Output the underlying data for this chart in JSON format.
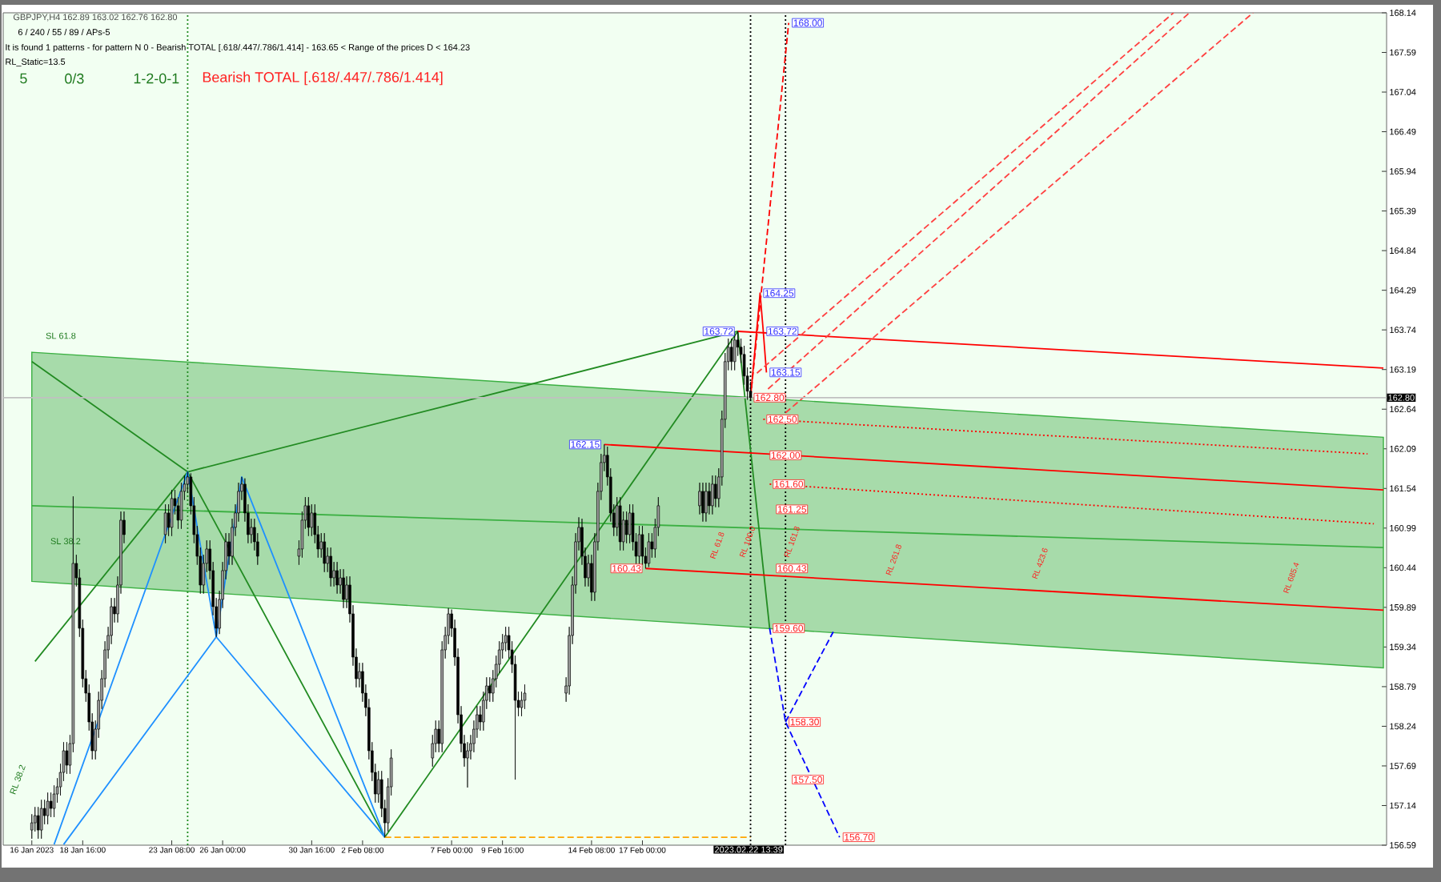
{
  "chart_data": {
    "type": "candlestick",
    "title": "GBPJPY,H4  162.89 163.02 162.76 162.80",
    "xlim": [
      "2023-01-14T12:00",
      "2023-03-28T00:00"
    ],
    "ylim": [
      156.59,
      168.14
    ],
    "xticks": [
      {
        "value": "2023-01-16T00:00",
        "label": "16 Jan 2023"
      },
      {
        "value": "2023-01-18T16:00",
        "label": "18 Jan 16:00"
      },
      {
        "value": "2023-01-23T08:00",
        "label": "23 Jan 08:00"
      },
      {
        "value": "2023-01-26T00:00",
        "label": "26 Jan 00:00"
      },
      {
        "value": "2023-01-30T16:00",
        "label": "30 Jan 16:00"
      },
      {
        "value": "2023-02-02T08:00",
        "label": "2 Feb 08:00"
      },
      {
        "value": "2023-02-07T00:00",
        "label": "7 Feb 00:00"
      },
      {
        "value": "2023-02-09T16:00",
        "label": "9 Feb 16:00"
      },
      {
        "value": "2023-02-14T08:00",
        "label": "14 Feb 08:00"
      },
      {
        "value": "2023-02-17T00:00",
        "label": "17 Feb 00:00"
      }
    ],
    "yticks": [
      156.59,
      157.14,
      157.69,
      158.24,
      158.79,
      159.34,
      159.89,
      160.44,
      160.99,
      161.54,
      162.09,
      162.64,
      163.19,
      163.74,
      164.29,
      164.84,
      165.39,
      165.94,
      166.49,
      167.04,
      167.59,
      168.14
    ],
    "x": [
      "2023-01-16T00:00",
      "2023-01-16T04:00",
      "2023-01-16T08:00",
      "2023-01-16T12:00",
      "2023-01-16T16:00",
      "2023-01-16T20:00",
      "2023-01-17T00:00",
      "2023-01-17T04:00",
      "2023-01-17T08:00",
      "2023-01-17T12:00",
      "2023-01-17T16:00",
      "2023-01-17T20:00",
      "2023-01-18T00:00",
      "2023-01-18T04:00",
      "2023-01-18T08:00",
      "2023-01-18T12:00",
      "2023-01-18T16:00",
      "2023-01-18T20:00",
      "2023-01-19T00:00",
      "2023-01-19T04:00",
      "2023-01-19T08:00",
      "2023-01-19T12:00",
      "2023-01-19T16:00",
      "2023-01-19T20:00",
      "2023-01-20T00:00",
      "2023-01-20T04:00",
      "2023-01-20T08:00",
      "2023-01-20T12:00",
      "2023-01-20T16:00",
      "2023-01-20T20:00",
      "2023-01-23T00:00",
      "2023-01-23T04:00",
      "2023-01-23T08:00",
      "2023-01-23T12:00",
      "2023-01-23T16:00",
      "2023-01-23T20:00",
      "2023-01-24T00:00",
      "2023-01-24T04:00",
      "2023-01-24T08:00",
      "2023-01-24T12:00",
      "2023-01-24T16:00",
      "2023-01-24T20:00",
      "2023-01-25T00:00",
      "2023-01-25T04:00",
      "2023-01-25T08:00",
      "2023-01-25T12:00",
      "2023-01-25T16:00",
      "2023-01-25T20:00",
      "2023-01-26T00:00",
      "2023-01-26T04:00",
      "2023-01-26T08:00",
      "2023-01-26T12:00",
      "2023-01-26T16:00",
      "2023-01-26T20:00",
      "2023-01-27T00:00",
      "2023-01-27T04:00",
      "2023-01-27T08:00",
      "2023-01-27T12:00",
      "2023-01-27T16:00",
      "2023-01-27T20:00",
      "2023-01-30T00:00",
      "2023-01-30T04:00",
      "2023-01-30T08:00",
      "2023-01-30T12:00",
      "2023-01-30T16:00",
      "2023-01-30T20:00",
      "2023-01-31T00:00",
      "2023-01-31T04:00",
      "2023-01-31T08:00",
      "2023-01-31T12:00",
      "2023-01-31T16:00",
      "2023-01-31T20:00",
      "2023-02-01T00:00",
      "2023-02-01T04:00",
      "2023-02-01T08:00",
      "2023-02-01T12:00",
      "2023-02-01T16:00",
      "2023-02-01T20:00",
      "2023-02-02T00:00",
      "2023-02-02T04:00",
      "2023-02-02T08:00",
      "2023-02-02T12:00",
      "2023-02-02T16:00",
      "2023-02-02T20:00",
      "2023-02-03T00:00",
      "2023-02-03T04:00",
      "2023-02-03T08:00",
      "2023-02-03T12:00",
      "2023-02-03T16:00",
      "2023-02-03T20:00",
      "2023-02-06T00:00",
      "2023-02-06T04:00",
      "2023-02-06T08:00",
      "2023-02-06T12:00",
      "2023-02-06T16:00",
      "2023-02-06T20:00",
      "2023-02-07T00:00",
      "2023-02-07T04:00",
      "2023-02-07T08:00",
      "2023-02-07T12:00",
      "2023-02-07T16:00",
      "2023-02-07T20:00",
      "2023-02-08T00:00",
      "2023-02-08T04:00",
      "2023-02-08T08:00",
      "2023-02-08T12:00",
      "2023-02-08T16:00",
      "2023-02-08T20:00",
      "2023-02-09T00:00",
      "2023-02-09T04:00",
      "2023-02-09T08:00",
      "2023-02-09T12:00",
      "2023-02-09T16:00",
      "2023-02-09T20:00",
      "2023-02-10T00:00",
      "2023-02-10T04:00",
      "2023-02-10T08:00",
      "2023-02-10T12:00",
      "2023-02-10T16:00",
      "2023-02-10T20:00",
      "2023-02-13T00:00",
      "2023-02-13T04:00",
      "2023-02-13T08:00",
      "2023-02-13T12:00",
      "2023-02-13T16:00",
      "2023-02-13T20:00",
      "2023-02-14T00:00",
      "2023-02-14T04:00",
      "2023-02-14T08:00",
      "2023-02-14T12:00",
      "2023-02-14T16:00",
      "2023-02-14T20:00",
      "2023-02-15T00:00",
      "2023-02-15T04:00",
      "2023-02-15T08:00",
      "2023-02-15T12:00",
      "2023-02-15T16:00",
      "2023-02-15T20:00",
      "2023-02-16T00:00",
      "2023-02-16T04:00",
      "2023-02-16T08:00",
      "2023-02-16T12:00",
      "2023-02-16T16:00",
      "2023-02-16T20:00",
      "2023-02-17T00:00",
      "2023-02-17T04:00",
      "2023-02-17T08:00",
      "2023-02-17T12:00",
      "2023-02-17T16:00",
      "2023-02-17T20:00",
      "2023-02-20T00:00",
      "2023-02-20T04:00",
      "2023-02-20T08:00",
      "2023-02-20T12:00",
      "2023-02-20T16:00",
      "2023-02-20T20:00",
      "2023-02-21T00:00",
      "2023-02-21T04:00",
      "2023-02-21T08:00",
      "2023-02-21T12:00",
      "2023-02-21T16:00",
      "2023-02-21T20:00",
      "2023-02-22T00:00",
      "2023-02-22T04:00",
      "2023-02-22T08:00",
      "2023-02-22T12:00",
      "2023-02-22T16:00"
    ],
    "ohlc": [
      [
        156.8,
        157.02,
        156.68,
        156.9
      ],
      [
        156.9,
        157.12,
        156.78,
        157.0
      ],
      [
        157.0,
        157.12,
        156.68,
        156.8
      ],
      [
        156.8,
        157.22,
        156.68,
        157.1
      ],
      [
        157.1,
        157.22,
        156.88,
        157.0
      ],
      [
        157.0,
        157.32,
        156.88,
        157.2
      ],
      [
        157.2,
        157.32,
        156.98,
        157.1
      ],
      [
        157.1,
        157.42,
        156.98,
        157.3
      ],
      [
        157.3,
        157.52,
        157.18,
        157.4
      ],
      [
        157.4,
        157.72,
        157.28,
        157.6
      ],
      [
        157.6,
        158.02,
        157.48,
        157.9
      ],
      [
        157.9,
        158.02,
        157.58,
        157.7
      ],
      [
        157.7,
        158.12,
        157.58,
        158.0
      ],
      [
        158.0,
        161.43,
        157.88,
        160.5
      ],
      [
        160.5,
        160.62,
        160.18,
        160.3
      ],
      [
        160.3,
        160.42,
        159.48,
        159.6
      ],
      [
        159.6,
        159.72,
        158.78,
        158.9
      ],
      [
        158.9,
        159.02,
        158.58,
        158.7
      ],
      [
        158.7,
        158.82,
        158.18,
        158.3
      ],
      [
        158.3,
        158.42,
        157.78,
        157.9
      ],
      [
        157.9,
        158.32,
        157.78,
        158.2
      ],
      [
        158.2,
        158.72,
        158.08,
        158.6
      ],
      [
        158.6,
        159.02,
        158.48,
        158.9
      ],
      [
        158.9,
        159.42,
        158.78,
        159.3
      ],
      [
        159.3,
        159.62,
        159.18,
        159.5
      ],
      [
        159.5,
        160.02,
        159.38,
        159.9
      ],
      [
        159.9,
        160.02,
        159.68,
        159.8
      ],
      [
        159.8,
        160.32,
        159.68,
        160.2
      ],
      [
        160.2,
        161.22,
        160.08,
        161.1
      ],
      [
        161.1,
        161.22,
        160.78,
        160.9
      ],
      [
        160.9,
        161.32,
        160.78,
        161.2
      ],
      [
        161.2,
        161.32,
        160.88,
        161.0
      ],
      [
        161.0,
        161.52,
        160.88,
        161.4
      ],
      [
        161.4,
        161.52,
        161.18,
        161.3
      ],
      [
        161.3,
        161.42,
        160.98,
        161.1
      ],
      [
        161.1,
        161.62,
        160.98,
        161.5
      ],
      [
        161.5,
        161.72,
        161.38,
        161.6
      ],
      [
        161.6,
        161.77,
        161.48,
        161.7
      ],
      [
        161.7,
        161.75,
        161.18,
        161.3
      ],
      [
        161.3,
        161.42,
        160.78,
        160.9
      ],
      [
        160.9,
        161.02,
        160.48,
        160.6
      ],
      [
        160.6,
        160.72,
        160.08,
        160.2
      ],
      [
        160.2,
        160.62,
        160.08,
        160.5
      ],
      [
        160.5,
        160.82,
        160.38,
        160.7
      ],
      [
        160.7,
        160.82,
        160.28,
        160.4
      ],
      [
        160.4,
        160.52,
        159.78,
        159.9
      ],
      [
        159.9,
        160.02,
        159.48,
        159.6
      ],
      [
        159.6,
        160.12,
        159.52,
        160.0
      ],
      [
        160.0,
        160.52,
        159.88,
        160.4
      ],
      [
        160.4,
        160.92,
        160.28,
        160.8
      ],
      [
        160.8,
        160.92,
        160.48,
        160.6
      ],
      [
        160.6,
        161.12,
        160.48,
        161.0
      ],
      [
        161.0,
        161.32,
        160.88,
        161.2
      ],
      [
        161.2,
        161.62,
        161.08,
        161.5
      ],
      [
        161.5,
        161.7,
        161.38,
        161.6
      ],
      [
        161.6,
        161.68,
        161.08,
        161.2
      ],
      [
        161.2,
        161.32,
        160.78,
        160.9
      ],
      [
        160.9,
        161.12,
        160.78,
        161.0
      ],
      [
        161.0,
        161.12,
        160.68,
        160.8
      ],
      [
        160.8,
        160.92,
        160.48,
        160.6
      ],
      [
        160.6,
        160.82,
        160.48,
        160.7
      ],
      [
        160.7,
        161.22,
        160.58,
        161.1
      ],
      [
        161.1,
        161.42,
        160.98,
        161.3
      ],
      [
        161.3,
        161.42,
        160.88,
        161.0
      ],
      [
        161.0,
        161.32,
        160.88,
        161.2
      ],
      [
        161.2,
        161.32,
        160.78,
        160.9
      ],
      [
        160.9,
        161.02,
        160.58,
        160.7
      ],
      [
        160.7,
        160.92,
        160.58,
        160.8
      ],
      [
        160.8,
        160.92,
        160.38,
        160.5
      ],
      [
        160.5,
        160.72,
        160.38,
        160.6
      ],
      [
        160.6,
        160.72,
        160.18,
        160.3
      ],
      [
        160.3,
        160.52,
        160.18,
        160.4
      ],
      [
        160.4,
        160.52,
        160.08,
        160.2
      ],
      [
        160.2,
        160.42,
        160.08,
        160.3
      ],
      [
        160.3,
        160.42,
        159.88,
        160.0
      ],
      [
        160.0,
        160.32,
        159.88,
        160.2
      ],
      [
        160.2,
        160.32,
        159.68,
        159.8
      ],
      [
        159.8,
        159.92,
        159.08,
        159.2
      ],
      [
        159.2,
        159.32,
        158.78,
        158.9
      ],
      [
        158.9,
        159.12,
        158.78,
        159.0
      ],
      [
        159.0,
        159.12,
        158.58,
        158.7
      ],
      [
        158.7,
        158.82,
        158.38,
        158.5
      ],
      [
        158.5,
        158.62,
        157.78,
        157.9
      ],
      [
        157.9,
        158.02,
        157.48,
        157.6
      ],
      [
        157.6,
        157.72,
        157.18,
        157.3
      ],
      [
        157.3,
        157.62,
        157.18,
        157.5
      ],
      [
        157.5,
        157.62,
        156.98,
        157.1
      ],
      [
        157.1,
        157.22,
        156.7,
        156.9
      ],
      [
        156.9,
        157.52,
        156.78,
        157.4
      ],
      [
        157.4,
        157.92,
        157.28,
        157.8
      ],
      [
        157.8,
        158.12,
        157.68,
        158.0
      ],
      [
        158.0,
        158.32,
        157.88,
        158.2
      ],
      [
        158.2,
        158.32,
        157.88,
        158.0
      ],
      [
        158.0,
        159.42,
        157.88,
        159.3
      ],
      [
        159.3,
        159.62,
        159.18,
        159.5
      ],
      [
        159.5,
        159.88,
        159.38,
        159.8
      ],
      [
        159.8,
        159.86,
        159.48,
        159.6
      ],
      [
        159.6,
        159.72,
        159.08,
        159.2
      ],
      [
        159.2,
        159.32,
        158.28,
        158.4
      ],
      [
        158.4,
        158.52,
        157.88,
        158.0
      ],
      [
        158.0,
        158.12,
        157.68,
        157.8
      ],
      [
        157.8,
        158.02,
        157.39,
        157.9
      ],
      [
        157.9,
        158.12,
        157.78,
        158.0
      ],
      [
        158.0,
        158.32,
        157.88,
        158.2
      ],
      [
        158.2,
        158.52,
        158.08,
        158.4
      ],
      [
        158.4,
        158.52,
        158.18,
        158.3
      ],
      [
        158.3,
        158.72,
        158.18,
        158.6
      ],
      [
        158.6,
        158.92,
        158.48,
        158.8
      ],
      [
        158.8,
        158.92,
        158.58,
        158.7
      ],
      [
        158.7,
        159.02,
        158.58,
        158.9
      ],
      [
        158.9,
        159.22,
        158.78,
        159.1
      ],
      [
        159.1,
        159.42,
        158.98,
        159.3
      ],
      [
        159.3,
        159.52,
        159.18,
        159.4
      ],
      [
        159.4,
        159.62,
        159.28,
        159.5
      ],
      [
        159.5,
        159.62,
        159.18,
        159.3
      ],
      [
        159.3,
        159.42,
        158.98,
        159.1
      ],
      [
        159.1,
        159.22,
        157.5,
        158.6
      ],
      [
        158.6,
        158.72,
        158.38,
        158.5
      ],
      [
        158.5,
        158.72,
        158.38,
        158.6
      ],
      [
        158.6,
        158.82,
        158.48,
        158.7
      ],
      [
        158.7,
        158.92,
        158.58,
        158.8
      ],
      [
        158.8,
        159.62,
        158.68,
        159.5
      ],
      [
        159.5,
        160.32,
        159.38,
        160.2
      ],
      [
        160.2,
        160.92,
        160.08,
        160.8
      ],
      [
        160.8,
        161.14,
        160.68,
        161.0
      ],
      [
        161.0,
        161.12,
        160.48,
        160.6
      ],
      [
        160.6,
        160.72,
        160.18,
        160.3
      ],
      [
        160.3,
        160.62,
        160.18,
        160.5
      ],
      [
        160.5,
        160.62,
        159.98,
        160.1
      ],
      [
        160.1,
        160.92,
        159.98,
        160.8
      ],
      [
        160.8,
        161.62,
        160.68,
        161.5
      ],
      [
        161.5,
        162.02,
        161.38,
        161.9
      ],
      [
        161.9,
        162.15,
        161.78,
        162.0
      ],
      [
        162.0,
        162.12,
        161.58,
        161.7
      ],
      [
        161.7,
        161.82,
        161.08,
        161.2
      ],
      [
        161.2,
        161.32,
        160.88,
        161.0
      ],
      [
        161.0,
        161.42,
        160.88,
        161.3
      ],
      [
        161.3,
        161.42,
        160.68,
        160.8
      ],
      [
        160.8,
        161.22,
        160.68,
        161.1
      ],
      [
        161.1,
        161.22,
        160.78,
        160.9
      ],
      [
        160.9,
        161.32,
        160.78,
        161.2
      ],
      [
        161.2,
        161.32,
        160.68,
        160.8
      ],
      [
        160.8,
        160.92,
        160.48,
        160.6
      ],
      [
        160.6,
        161.02,
        160.48,
        160.9
      ],
      [
        160.9,
        161.02,
        160.48,
        160.6
      ],
      [
        160.6,
        160.72,
        160.43,
        160.5
      ],
      [
        160.5,
        160.92,
        160.45,
        160.8
      ],
      [
        160.8,
        160.92,
        160.58,
        160.7
      ],
      [
        160.7,
        161.12,
        160.58,
        161.0
      ],
      [
        161.0,
        161.42,
        160.88,
        161.3
      ],
      [
        161.3,
        161.62,
        161.18,
        161.5
      ],
      [
        161.5,
        161.62,
        161.08,
        161.2
      ],
      [
        161.2,
        161.62,
        161.08,
        161.5
      ],
      [
        161.5,
        161.62,
        161.18,
        161.3
      ],
      [
        161.3,
        161.72,
        161.18,
        161.6
      ],
      [
        161.6,
        161.72,
        161.28,
        161.4
      ],
      [
        161.4,
        161.82,
        161.28,
        161.7
      ],
      [
        161.7,
        162.62,
        161.58,
        162.5
      ],
      [
        162.5,
        163.42,
        162.38,
        163.3
      ],
      [
        163.3,
        163.62,
        163.18,
        163.5
      ],
      [
        163.5,
        163.62,
        163.18,
        163.3
      ],
      [
        163.3,
        163.7,
        163.18,
        163.6
      ],
      [
        163.6,
        163.72,
        163.38,
        163.5
      ],
      [
        163.5,
        163.62,
        163.28,
        163.4
      ],
      [
        163.4,
        163.52,
        162.98,
        163.1
      ],
      [
        163.1,
        163.22,
        162.77,
        162.89
      ],
      [
        162.89,
        163.02,
        162.76,
        162.8
      ]
    ],
    "series": [
      {
        "type": "line",
        "color": "#3cb043",
        "x": [
          "2023-01-16T00:00",
          "2023-03-27T20:00"
        ],
        "values": [
          161.3,
          160.72
        ],
        "lower": [
          160.25,
          159.05
        ],
        "upper": [
          163.43,
          162.25
        ]
      },
      {
        "type": "line",
        "color": "#228b22",
        "line_style": "dotted",
        "x": [
          "2023-01-24T04:00",
          "2023-01-24T04:00"
        ],
        "values": [
          156.59,
          168.14
        ]
      },
      {
        "type": "line",
        "color": "#000000",
        "line_style": "dotted",
        "x": [
          "2023-02-22T16:00",
          "2023-02-22T16:00"
        ],
        "values": [
          156.59,
          168.14
        ]
      },
      {
        "type": "line",
        "color": "#000000",
        "line_style": "dotted",
        "x": [
          "2023-02-24T12:00",
          "2023-02-24T12:00"
        ],
        "values": [
          156.59,
          168.14
        ]
      },
      {
        "type": "line",
        "color": "#228b22",
        "x": [
          "2023-01-16T04:00",
          "2023-01-24T04:00",
          "2023-02-03T12:00",
          "2023-02-22T00:00",
          "2023-02-23T16:00"
        ],
        "values": [
          159.14,
          161.77,
          156.7,
          163.72,
          159.6
        ]
      },
      {
        "type": "line",
        "color": "#228b22",
        "x": [
          "2023-01-16T00:00",
          "2023-01-24T04:00",
          "2023-02-22T00:00"
        ],
        "values": [
          163.3,
          161.77,
          163.72
        ]
      },
      {
        "type": "line",
        "color": "#1e90ff",
        "x": [
          "2023-01-17T04:00",
          "2023-01-24T04:00",
          "2023-01-25T16:00",
          "2023-01-27T00:00",
          "2023-02-03T12:00"
        ],
        "values": [
          156.6,
          161.77,
          159.48,
          161.7,
          156.7
        ]
      },
      {
        "type": "line",
        "color": "#1e90ff",
        "x": [
          "2023-01-17T16:00",
          "2023-01-25T16:00",
          "2023-02-03T12:00"
        ],
        "values": [
          156.6,
          159.48,
          156.7
        ]
      },
      {
        "type": "line",
        "color": "#0000ff",
        "line_style": "dashed",
        "x": [
          "2023-02-23T16:00",
          "2023-02-24T12:00",
          "2023-02-27T08:00"
        ],
        "values": [
          159.6,
          158.3,
          156.7
        ]
      },
      {
        "type": "line",
        "color": "#0000ff",
        "line_style": "dashed",
        "x": [
          "2023-02-24T12:00",
          "2023-02-27T00:00"
        ],
        "values": [
          158.3,
          159.55
        ]
      },
      {
        "type": "line",
        "color": "#ff0000",
        "line_style": "dashed",
        "x": [
          "2023-02-22T16:00",
          "2023-02-24T16:00"
        ],
        "values": [
          162.8,
          168.0
        ]
      },
      {
        "type": "line",
        "color": "#ff0000",
        "x": [
          "2023-02-22T16:00",
          "2023-02-23T04:00",
          "2023-02-23T08:00",
          "2023-02-23T12:00"
        ],
        "values": [
          162.8,
          164.25,
          163.72,
          163.15
        ]
      },
      {
        "type": "line",
        "color": "#ff0000",
        "x": [
          "2023-02-22T00:00",
          "2023-03-27T20:00"
        ],
        "values": [
          163.72,
          163.21
        ]
      },
      {
        "type": "line",
        "color": "#ff0000",
        "x": [
          "2023-02-15T00:00",
          "2023-03-27T20:00"
        ],
        "values": [
          162.15,
          161.52
        ]
      },
      {
        "type": "line",
        "color": "#ff0000",
        "x": [
          "2023-02-17T04:00",
          "2023-03-27T20:00"
        ],
        "values": [
          160.43,
          159.85
        ]
      },
      {
        "type": "line",
        "color": "#ff0000",
        "line_style": "dotted",
        "x": [
          "2023-02-23T08:00",
          "2023-03-27T00:00"
        ],
        "values": [
          162.5,
          162.02
        ]
      },
      {
        "type": "line",
        "color": "#ff0000",
        "line_style": "dotted",
        "x": [
          "2023-02-23T16:00",
          "2023-03-27T08:00"
        ],
        "values": [
          161.6,
          161.05
        ]
      },
      {
        "type": "line",
        "color": "#ff4040",
        "line_style": "dashed",
        "x": [
          "2023-02-23T00:00",
          "2023-03-16T20:00"
        ],
        "values": [
          163.14,
          168.14
        ]
      },
      {
        "type": "line",
        "color": "#ff4040",
        "line_style": "dashed",
        "x": [
          "2023-02-23T14:00",
          "2023-03-17T16:00"
        ],
        "values": [
          162.92,
          168.14
        ]
      },
      {
        "type": "line",
        "color": "#ff4040",
        "line_style": "dashed",
        "x": [
          "2023-02-24T12:00",
          "2023-03-21T00:00"
        ],
        "values": [
          162.59,
          168.14
        ]
      },
      {
        "type": "line",
        "color": "#ffa500",
        "line_style": "dashed",
        "x": [
          "2023-02-03T12:00",
          "2023-02-22T16:00"
        ],
        "values": [
          156.7,
          156.7
        ]
      }
    ],
    "ref_lines": [
      {
        "axis": "y",
        "value": 162.8,
        "color": "#c0c0c0",
        "label": "162.80"
      }
    ],
    "annotations": [
      {
        "text": "168.00",
        "x": "2023-02-24T16:00",
        "y": 168.0
      },
      {
        "text": "164.25",
        "x": "2023-02-23T04:00",
        "y": 164.25
      },
      {
        "text": "163.72",
        "x": "2023-02-23T08:00",
        "y": 163.72
      },
      {
        "text": "163.72",
        "x": "2023-02-22T00:00",
        "y": 163.72
      },
      {
        "text": "163.15",
        "x": "2023-02-23T12:00",
        "y": 163.15
      },
      {
        "text": "162.15",
        "x": "2023-02-15T00:00",
        "y": 162.15
      },
      {
        "text": "162.80",
        "x": "2023-02-22T16:00",
        "y": 162.8
      },
      {
        "text": "162.50",
        "x": "2023-02-23T08:00",
        "y": 162.5
      },
      "162.00",
      {
        "text": "161.60",
        "x": "2023-02-23T16:00",
        "y": 161.6
      },
      "161.25",
      "160.43",
      {
        "text": "160.43",
        "x": "2023-02-17T04:00",
        "y": 160.43
      },
      {
        "text": "159.60",
        "x": "2023-02-23T16:00",
        "y": 159.6
      },
      {
        "text": "158.30",
        "x": "2023-02-24T12:00",
        "y": 158.3
      },
      "157.50",
      {
        "text": "156.70",
        "x": "2023-02-27T08:00",
        "y": 156.7
      },
      "RL 61.8",
      "RL 100.0",
      "RL 161.8",
      "RL 261.8",
      "RL 423.6",
      "RL 685.4",
      "SL 61.8",
      "SL 38.2",
      "RL 38.2",
      "6 / 240 / 55 / 89 / APs-5",
      "It is found 1 patterns  -  for pattern N 0 - Bearish TOTAL [.618/.447/.786/1.414] - 163.65 < Range of the prices D < 164.23",
      "RL_Static=13.5",
      "5",
      "0/3",
      "1-2-0-1",
      "Bearish TOTAL [.618/.447/.786/1.414]",
      "2023.02.22 13:39"
    ]
  }
}
